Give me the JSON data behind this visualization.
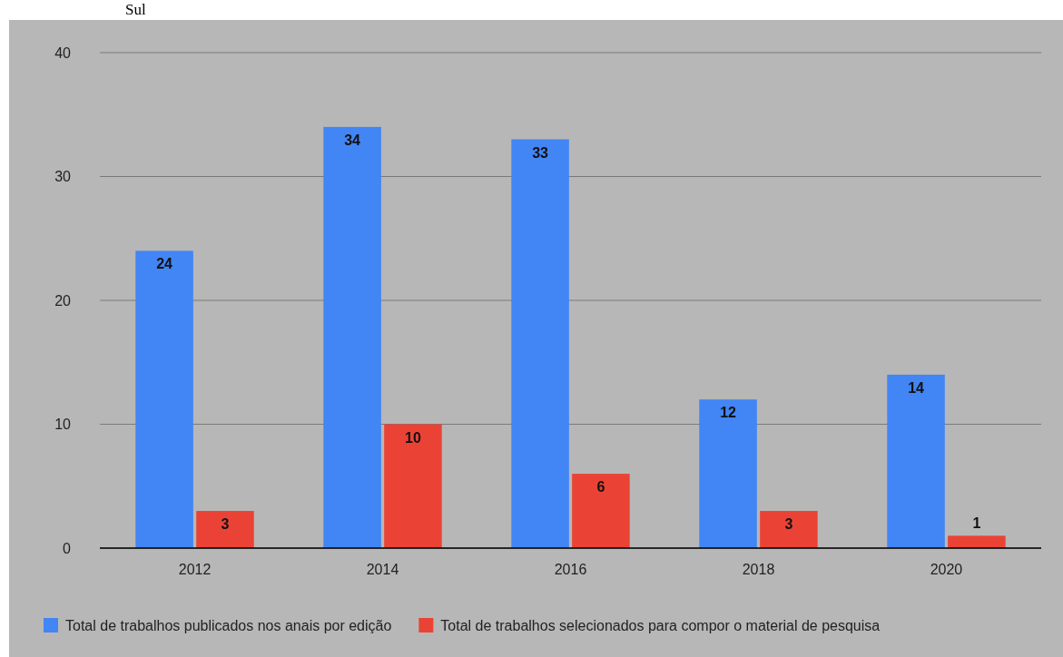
{
  "chart_data": {
    "type": "bar",
    "annotations": [
      "Sul"
    ],
    "categories": [
      "2012",
      "2014",
      "2016",
      "2018",
      "2020"
    ],
    "series": [
      {
        "name": "Total de trabalhos publicados nos anais por edição",
        "color": "#4285f4",
        "values": [
          24,
          34,
          33,
          12,
          14
        ]
      },
      {
        "name": "Total de trabalhos selecionados para compor o material de pesquisa",
        "color": "#ea4335",
        "values": [
          3,
          10,
          6,
          3,
          1
        ]
      }
    ],
    "ylim": [
      0,
      40
    ],
    "yticks": [
      0,
      10,
      20,
      30,
      40
    ],
    "grid": "y",
    "legend": "bottom",
    "data_labels": true
  }
}
